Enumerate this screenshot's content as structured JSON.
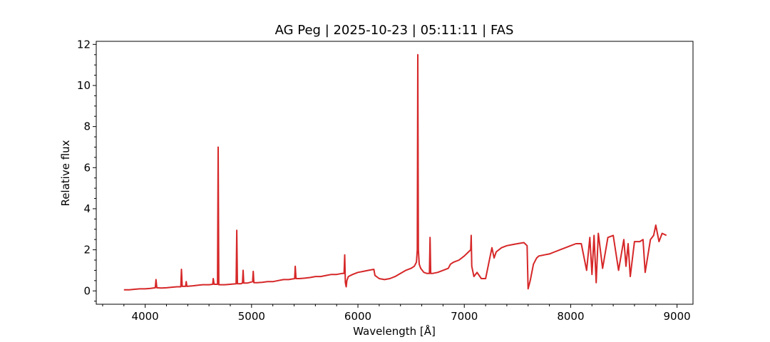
{
  "chart_data": {
    "type": "line",
    "title": "AG Peg | 2025-10-23 | 05:11:11 | FAS",
    "xlabel": "Wavelength [Å]",
    "ylabel": "Relative flux",
    "xlim": [
      3540,
      9150
    ],
    "ylim": [
      -0.65,
      12.15
    ],
    "x_ticks": [
      4000,
      5000,
      6000,
      7000,
      8000,
      9000
    ],
    "y_ticks": [
      0,
      2,
      4,
      6,
      8,
      10,
      12
    ],
    "x_minor_step": 200,
    "y_minor_step": 0.5,
    "grid": false,
    "line_color": "#d62728",
    "series": [
      {
        "x": [
          3800,
          3850,
          3900,
          3950,
          4000,
          4050,
          4095,
          4102,
          4110,
          4150,
          4200,
          4250,
          4300,
          4335,
          4341,
          4348,
          4380,
          4386,
          4392,
          4450,
          4500,
          4540,
          4600,
          4635,
          4640,
          4648,
          4680,
          4686,
          4692,
          4750,
          4800,
          4855,
          4861,
          4867,
          4900,
          4915,
          4921,
          4927,
          4960,
          5010,
          5016,
          5022,
          5050,
          5100,
          5150,
          5200,
          5250,
          5300,
          5350,
          5405,
          5411,
          5418,
          5450,
          5500,
          5550,
          5600,
          5650,
          5700,
          5750,
          5800,
          5850,
          5870,
          5876,
          5882,
          5890,
          5896,
          5910,
          5950,
          6000,
          6050,
          6100,
          6150,
          6160,
          6200,
          6250,
          6300,
          6350,
          6400,
          6450,
          6500,
          6530,
          6550,
          6558,
          6563,
          6568,
          6576,
          6590,
          6620,
          6650,
          6672,
          6678,
          6684,
          6700,
          6750,
          6800,
          6850,
          6870,
          6900,
          6950,
          7000,
          7040,
          7060,
          7065,
          7070,
          7090,
          7120,
          7160,
          7200,
          7240,
          7260,
          7280,
          7300,
          7350,
          7400,
          7450,
          7500,
          7560,
          7590,
          7600,
          7620,
          7650,
          7680,
          7700,
          7750,
          7800,
          7850,
          7900,
          7950,
          8000,
          8050,
          8100,
          8150,
          8180,
          8200,
          8220,
          8240,
          8260,
          8300,
          8350,
          8400,
          8450,
          8500,
          8520,
          8540,
          8560,
          8600,
          8650,
          8680,
          8700,
          8750,
          8780,
          8800,
          8830,
          8860,
          8900
        ],
        "y": [
          0.05,
          0.05,
          0.08,
          0.1,
          0.1,
          0.12,
          0.15,
          0.55,
          0.15,
          0.14,
          0.15,
          0.18,
          0.2,
          0.2,
          1.05,
          0.22,
          0.22,
          0.45,
          0.22,
          0.25,
          0.28,
          0.3,
          0.3,
          0.32,
          0.6,
          0.32,
          0.32,
          7.0,
          0.3,
          0.3,
          0.32,
          0.35,
          2.95,
          0.35,
          0.35,
          0.38,
          1.0,
          0.38,
          0.38,
          0.45,
          0.95,
          0.4,
          0.4,
          0.42,
          0.45,
          0.45,
          0.5,
          0.55,
          0.55,
          0.6,
          1.2,
          0.6,
          0.6,
          0.62,
          0.65,
          0.7,
          0.7,
          0.75,
          0.8,
          0.8,
          0.85,
          0.85,
          1.75,
          0.4,
          0.2,
          0.5,
          0.7,
          0.8,
          0.9,
          0.95,
          1.0,
          1.05,
          0.75,
          0.6,
          0.55,
          0.6,
          0.7,
          0.85,
          1.0,
          1.1,
          1.2,
          1.4,
          2.0,
          11.5,
          2.0,
          1.3,
          1.1,
          0.9,
          0.85,
          0.85,
          2.6,
          0.85,
          0.85,
          0.9,
          1.0,
          1.1,
          1.3,
          1.4,
          1.5,
          1.7,
          1.9,
          2.0,
          2.7,
          1.2,
          0.7,
          0.9,
          0.6,
          0.6,
          1.6,
          2.1,
          1.6,
          1.9,
          2.1,
          2.2,
          2.25,
          2.3,
          2.35,
          2.2,
          0.1,
          0.5,
          1.3,
          1.6,
          1.7,
          1.75,
          1.8,
          1.9,
          2.0,
          2.1,
          2.2,
          2.3,
          2.3,
          1.0,
          2.6,
          0.8,
          2.7,
          0.4,
          2.8,
          1.1,
          2.6,
          2.7,
          1.0,
          2.5,
          1.2,
          2.3,
          0.7,
          2.4,
          2.4,
          2.5,
          0.9,
          2.5,
          2.7,
          3.2,
          2.4,
          2.8,
          2.7
        ]
      }
    ]
  }
}
